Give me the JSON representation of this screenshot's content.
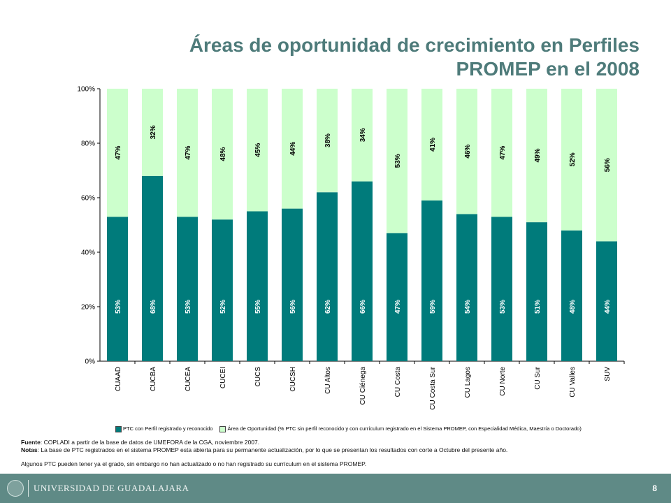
{
  "title": {
    "line1": "Áreas de oportunidad de crecimiento en Perfiles",
    "line2": "PROMEP en el 2008"
  },
  "colors": {
    "dark": "#007b7b",
    "light": "#ccffcc",
    "title": "#4e7b7a",
    "footer": "#5f8a86"
  },
  "chart_data": {
    "type": "bar",
    "stacked": true,
    "percent": true,
    "categories": [
      "CUAAD",
      "CUCBA",
      "CUCEA",
      "CUCEI",
      "CUCS",
      "CUCSH",
      "CU Altos",
      "CU Ciénega",
      "CU Costa",
      "CU Costa Sur",
      "CU Lagos",
      "CU Norte",
      "CU Sur",
      "CU Valles",
      "SUV"
    ],
    "series": [
      {
        "name": "PTC con Perfil registrado y reconocido",
        "color": "#007b7b",
        "values": [
          53,
          68,
          53,
          52,
          55,
          56,
          62,
          66,
          47,
          59,
          54,
          53,
          51,
          48,
          44
        ]
      },
      {
        "name": "Área de Oportunidad (% PTC sin perfil reconocido y con currículum registrado en el Sistema PROMEP, con Especialidad Médica, Maestría o Doctorado)",
        "color": "#ccffcc",
        "values": [
          47,
          32,
          47,
          48,
          45,
          44,
          38,
          34,
          53,
          41,
          46,
          47,
          49,
          52,
          56
        ]
      }
    ],
    "yticks": [
      "0%",
      "20%",
      "40%",
      "60%",
      "80%",
      "100%"
    ],
    "ylim": [
      0,
      100
    ],
    "legend_position": "bottom"
  },
  "notes": {
    "fuente_label": "Fuente",
    "fuente_text": ":  COPLADI  a partir de la base de datos de UMEFORA de la CGA, noviembre 2007.",
    "notas_label": "Notas",
    "notas_text": ": La base de PTC registrados en el sistema PROMEP esta abierta para su permanente actualización, por lo que se presentan los resultados con corte a Octubre del presente año.",
    "extra": "Algunos PTC pueden tener ya el grado, sin embargo no han actualizado o no han registrado su currículum en el sistema PROMEP."
  },
  "footer": {
    "university": "UNIVERSIDAD DE GUADALAJARA",
    "page": "8"
  }
}
